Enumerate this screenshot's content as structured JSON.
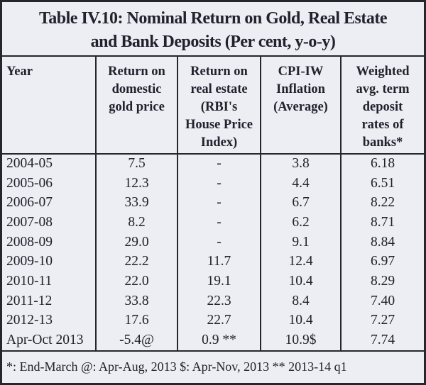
{
  "title": {
    "line1": "Table IV.10: Nominal Return on Gold, Real Estate",
    "line2": "and Bank Deposits (Per cent, y-o-y)"
  },
  "table": {
    "headers": [
      "Year",
      "Return on\ndomestic\ngold price",
      "Return on\nreal estate\n(RBI's\nHouse Price\nIndex)",
      "CPI-IW\nInflation\n(Average)",
      "Weighted\navg. term\ndeposit\nrates of\nbanks*"
    ],
    "rows": [
      {
        "year": "2004-05",
        "gold": "7.5",
        "real_estate": "-",
        "cpi": "3.8",
        "deposit": "6.18"
      },
      {
        "year": "2005-06",
        "gold": "12.3",
        "real_estate": "-",
        "cpi": "4.4",
        "deposit": "6.51"
      },
      {
        "year": "2006-07",
        "gold": "33.9",
        "real_estate": "-",
        "cpi": "6.7",
        "deposit": "8.22"
      },
      {
        "year": "2007-08",
        "gold": "8.2",
        "real_estate": "-",
        "cpi": "6.2",
        "deposit": "8.71"
      },
      {
        "year": "2008-09",
        "gold": "29.0",
        "real_estate": "-",
        "cpi": "9.1",
        "deposit": "8.84"
      },
      {
        "year": "2009-10",
        "gold": "22.2",
        "real_estate": "11.7",
        "cpi": "12.4",
        "deposit": "6.97"
      },
      {
        "year": "2010-11",
        "gold": "22.0",
        "real_estate": "19.1",
        "cpi": "10.4",
        "deposit": "8.29"
      },
      {
        "year": "2011-12",
        "gold": "33.8",
        "real_estate": "22.3",
        "cpi": "8.4",
        "deposit": "7.40"
      },
      {
        "year": "2012-13",
        "gold": "17.6",
        "real_estate": "22.7",
        "cpi": "10.4",
        "deposit": "7.27"
      },
      {
        "year": "Apr-Oct 2013",
        "gold": "-5.4@",
        "real_estate": "0.9 **",
        "cpi": "10.9$",
        "deposit": "7.74"
      }
    ]
  },
  "footnote": "*: End-March @: Apr-Aug, 2013 $: Apr-Nov, 2013 ** 2013-14 q1",
  "colors": {
    "background": "#eceef3",
    "text": "#20222d",
    "border": "#26272e"
  }
}
